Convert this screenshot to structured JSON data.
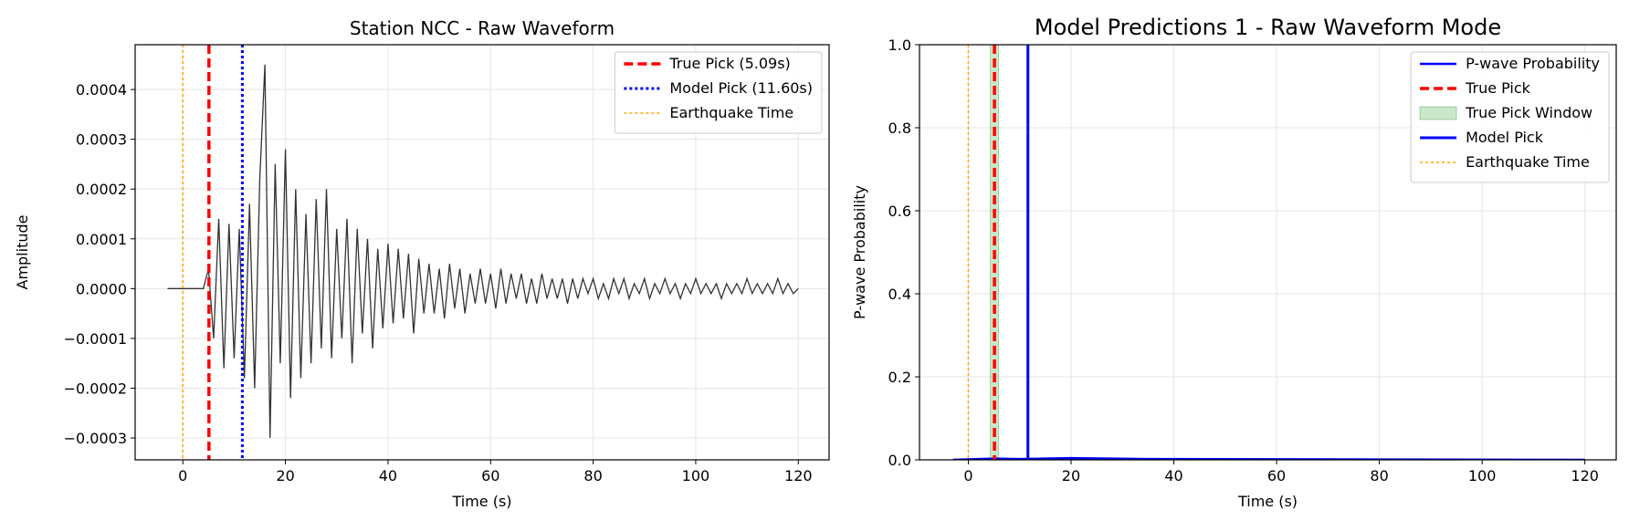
{
  "chart_data": [
    {
      "type": "line",
      "title": "Station NCC - Raw Waveform",
      "xlabel": "Time (s)",
      "ylabel": "Amplitude",
      "xlim": [
        -9.3,
        126
      ],
      "ylim": [
        -0.000344,
        0.00049
      ],
      "xticks": [
        0,
        20,
        40,
        60,
        80,
        100,
        120
      ],
      "yticks": [
        {
          "value": -0.0003,
          "label": "−0.0003"
        },
        {
          "value": -0.0002,
          "label": "−0.0002"
        },
        {
          "value": -0.0001,
          "label": "−0.0001"
        },
        {
          "value": 0,
          "label": "0.0000"
        },
        0.0001,
        0.0002,
        0.0003,
        0.0004
      ],
      "grid": true,
      "legend": "upper right",
      "series": [
        {
          "color": "#333333",
          "x": [
            -3,
            -2,
            -1,
            0,
            1,
            2,
            3,
            4,
            5,
            6,
            7,
            8,
            9,
            10,
            11,
            12,
            13,
            14,
            15,
            16,
            17,
            18,
            19,
            20,
            21,
            22,
            23,
            24,
            25,
            26,
            27,
            28,
            29,
            30,
            31,
            32,
            33,
            34,
            35,
            36,
            37,
            38,
            39,
            40,
            41,
            42,
            43,
            44,
            45,
            46,
            47,
            48,
            49,
            50,
            51,
            52,
            53,
            54,
            55,
            56,
            57,
            58,
            59,
            60,
            61,
            62,
            63,
            64,
            65,
            66,
            67,
            68,
            69,
            70,
            71,
            72,
            73,
            74,
            75,
            76,
            77,
            78,
            79,
            80,
            81,
            82,
            83,
            84,
            85,
            86,
            87,
            88,
            89,
            90,
            91,
            92,
            93,
            94,
            95,
            96,
            97,
            98,
            99,
            100,
            101,
            102,
            103,
            104,
            105,
            106,
            107,
            108,
            109,
            110,
            111,
            112,
            113,
            114,
            115,
            116,
            117,
            118,
            119,
            120
          ],
          "values": [
            0,
            0,
            0,
            0,
            0,
            0,
            0,
            0,
            4e-05,
            -0.0001,
            0.00014,
            -0.00016,
            0.00013,
            -0.00014,
            0.00012,
            -0.00018,
            0.00017,
            -0.0002,
            0.00022,
            0.00045,
            -0.0003,
            0.00025,
            -0.00015,
            0.00028,
            -0.00022,
            0.0002,
            -0.00018,
            0.00015,
            -0.00015,
            0.00018,
            -0.00012,
            0.0002,
            -0.00014,
            0.00012,
            -0.0001,
            0.00014,
            -0.00015,
            0.00012,
            -9e-05,
            0.0001,
            -0.00012,
            8e-05,
            -8e-05,
            9e-05,
            -7e-05,
            8e-05,
            -6e-05,
            7e-05,
            -9e-05,
            6e-05,
            -5e-05,
            5e-05,
            -5e-05,
            4e-05,
            -6e-05,
            5e-05,
            -4e-05,
            4e-05,
            -5e-05,
            3e-05,
            -3e-05,
            4e-05,
            -3e-05,
            3e-05,
            -4e-05,
            4e-05,
            -3e-05,
            3e-05,
            -2e-05,
            3e-05,
            -3e-05,
            2e-05,
            -3e-05,
            3e-05,
            -2e-05,
            2e-05,
            -2e-05,
            2e-05,
            -3e-05,
            2e-05,
            -2e-05,
            2e-05,
            -1e-05,
            2e-05,
            -2e-05,
            1e-05,
            -2e-05,
            2e-05,
            -1e-05,
            2e-05,
            -2e-05,
            1e-05,
            -1e-05,
            2e-05,
            -2e-05,
            1e-05,
            -1e-05,
            2e-05,
            -1e-05,
            1e-05,
            -2e-05,
            1e-05,
            -1e-05,
            2e-05,
            -1e-05,
            1e-05,
            -1e-05,
            1e-05,
            -2e-05,
            1e-05,
            -1e-05,
            1e-05,
            -1e-05,
            2e-05,
            -1e-05,
            1e-05,
            -1e-05,
            1e-05,
            -1e-05,
            2e-05,
            -1e-05,
            1e-05,
            -1e-05,
            0
          ]
        }
      ],
      "overlays": [
        {
          "kind": "vline",
          "name": "True Pick (5.09s)",
          "x": 5.09,
          "color": "red",
          "style": "dashed"
        },
        {
          "kind": "vline",
          "name": "Model Pick (11.60s)",
          "x": 11.6,
          "color": "blue",
          "style": "dotted"
        },
        {
          "kind": "vline",
          "name": "Earthquake Time",
          "x": 0,
          "color": "orange",
          "style": "dotted"
        }
      ]
    },
    {
      "type": "line",
      "title": "Model Predictions 1 - Raw Waveform Mode",
      "xlabel": "Time (s)",
      "ylabel": "P-wave Probability",
      "xlim": [
        -9.5,
        126.1
      ],
      "ylim": [
        0,
        1
      ],
      "xticks": [
        0,
        20,
        40,
        60,
        80,
        100,
        120
      ],
      "yticks": [
        {
          "value": 0,
          "label": "0.0"
        },
        0.2,
        0.4,
        0.6,
        0.8,
        {
          "value": 1,
          "label": "1.0"
        }
      ],
      "grid": true,
      "legend": "upper right",
      "series": [
        {
          "name": "P-wave Probability",
          "color": "blue",
          "x": [
            -3,
            5,
            10,
            20,
            35,
            120
          ],
          "values": [
            0,
            0.003,
            0.002,
            0.004,
            0.002,
            0
          ]
        }
      ],
      "overlays": [
        {
          "kind": "vline",
          "name": "True Pick",
          "x": 5.09,
          "color": "red",
          "style": "dashed"
        },
        {
          "kind": "span",
          "name": "True Pick Window",
          "x": [
            4.29,
            5.89
          ],
          "color": "green"
        },
        {
          "kind": "vline",
          "name": "Model Pick",
          "x": 11.6,
          "color": "blue",
          "style": "solid"
        },
        {
          "kind": "vline",
          "name": "Earthquake Time",
          "x": 0,
          "color": "orange",
          "style": "dotted"
        }
      ]
    }
  ]
}
